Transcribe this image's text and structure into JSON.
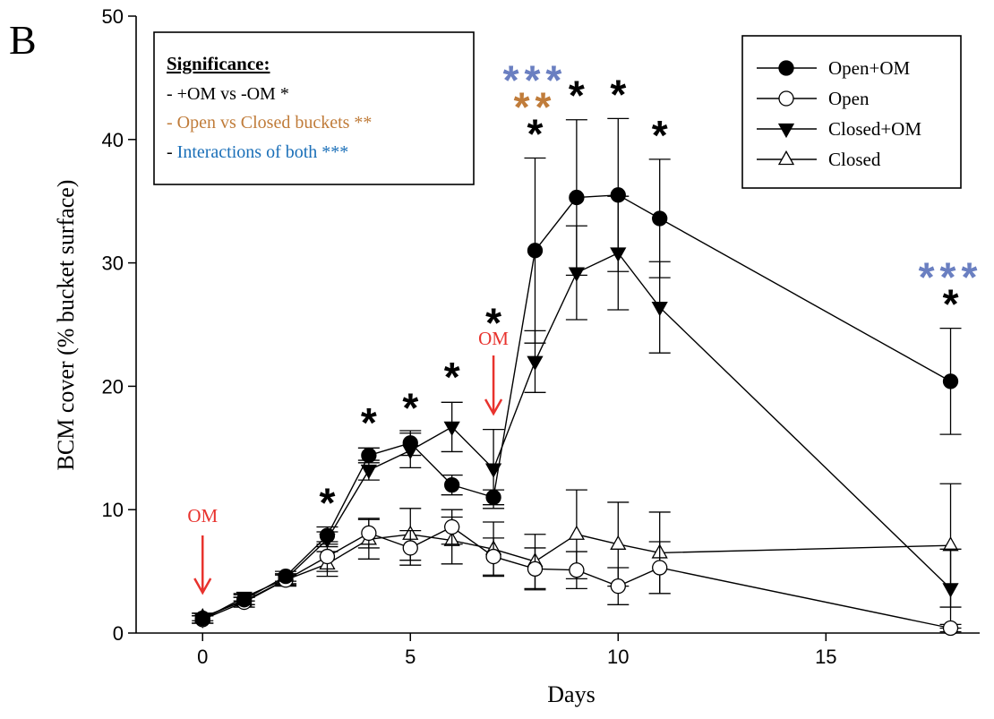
{
  "panel_label": "B",
  "colors": {
    "axis": "#000000",
    "om_arrow": "#e8332e",
    "sig_om": "#000000",
    "sig_open_closed": "#c07c3a",
    "sig_interaction": "#6a7fc1",
    "interaction_legend_text": "#1a6fb8"
  },
  "significance_box": {
    "title": "Significance:",
    "lines": [
      {
        "text": "- +OM vs -OM ",
        "marker": "*",
        "color_key": "sig_om"
      },
      {
        "text": "- Open vs Closed buckets ",
        "marker": "**",
        "color_key": "sig_open_closed"
      },
      {
        "text": "- Interactions of both ",
        "marker": "***",
        "color_key": "interaction_legend_text"
      }
    ]
  },
  "om_labels": [
    {
      "x": 0,
      "text": "OM"
    },
    {
      "x": 7,
      "text": "OM"
    }
  ],
  "chart_data": {
    "type": "line",
    "xlabel": "Days",
    "ylabel": "BCM cover (% bucket surface)",
    "xlim": [
      -1.6,
      18.7
    ],
    "ylim": [
      0,
      50
    ],
    "xticks": [
      0,
      5,
      10,
      15
    ],
    "yticks": [
      0,
      10,
      20,
      30,
      40,
      50
    ],
    "grid": false,
    "legend_position": "top-right",
    "series": [
      {
        "name": "Open+OM",
        "marker": "filled-circle",
        "x": [
          0,
          1,
          2,
          3,
          4,
          5,
          6,
          7,
          8,
          9,
          10,
          11,
          18
        ],
        "y": [
          1.2,
          2.7,
          4.6,
          7.9,
          14.4,
          15.4,
          12.0,
          11.0,
          31.0,
          35.3,
          35.5,
          33.6,
          20.4
        ],
        "err": [
          0.4,
          0.4,
          0.4,
          0.7,
          0.6,
          1.0,
          0.8,
          0.6,
          7.5,
          6.3,
          6.2,
          4.8,
          4.3
        ]
      },
      {
        "name": "Open",
        "marker": "open-circle",
        "x": [
          0,
          1,
          2,
          3,
          4,
          5,
          6,
          7,
          8,
          9,
          10,
          11,
          18
        ],
        "y": [
          1.1,
          2.5,
          4.3,
          6.2,
          8.1,
          6.9,
          8.6,
          6.2,
          5.2,
          5.1,
          3.8,
          5.3,
          0.4
        ],
        "err": [
          0.3,
          0.4,
          0.5,
          1.2,
          1.2,
          1.4,
          1.4,
          1.5,
          1.7,
          1.5,
          1.5,
          2.1,
          0.3
        ]
      },
      {
        "name": "Closed+OM",
        "marker": "filled-triangle-down",
        "x": [
          0,
          1,
          2,
          3,
          4,
          5,
          6,
          7,
          8,
          9,
          10,
          11,
          18
        ],
        "y": [
          1.1,
          2.9,
          4.4,
          7.6,
          13.2,
          14.8,
          16.7,
          13.3,
          22.0,
          29.2,
          30.8,
          26.4,
          3.6
        ],
        "err": [
          0.3,
          0.3,
          0.4,
          0.6,
          0.8,
          1.4,
          2.0,
          3.2,
          2.5,
          3.8,
          4.6,
          3.7,
          3.2
        ]
      },
      {
        "name": "Closed",
        "marker": "open-triangle-up",
        "x": [
          0,
          1,
          2,
          3,
          4,
          5,
          6,
          7,
          8,
          9,
          10,
          11,
          18
        ],
        "y": [
          1.3,
          2.6,
          4.3,
          5.6,
          7.6,
          8.0,
          7.5,
          6.8,
          5.8,
          8.0,
          7.2,
          6.5,
          7.1
        ],
        "err": [
          0.3,
          0.3,
          0.4,
          1.0,
          1.6,
          2.1,
          1.9,
          2.2,
          2.2,
          3.6,
          3.4,
          3.3,
          5.0
        ]
      }
    ],
    "annotations": [
      {
        "x": 3,
        "y": 9.4,
        "marks": [
          "*"
        ]
      },
      {
        "x": 4,
        "y": 15.9,
        "marks": [
          "*"
        ]
      },
      {
        "x": 5,
        "y": 17.1,
        "marks": [
          "*"
        ]
      },
      {
        "x": 6,
        "y": 19.6,
        "marks": [
          "*"
        ]
      },
      {
        "x": 7,
        "y": 24.0,
        "marks": [
          "*"
        ]
      },
      {
        "x": 8,
        "y": 39.3,
        "marks": [
          "*",
          "**",
          "***"
        ]
      },
      {
        "x": 9,
        "y": 42.4,
        "marks": [
          "*"
        ]
      },
      {
        "x": 10,
        "y": 42.5,
        "marks": [
          "*"
        ]
      },
      {
        "x": 11,
        "y": 39.2,
        "marks": [
          "*"
        ]
      },
      {
        "x": 18,
        "y": 25.5,
        "marks": [
          "*",
          "***"
        ]
      }
    ]
  }
}
